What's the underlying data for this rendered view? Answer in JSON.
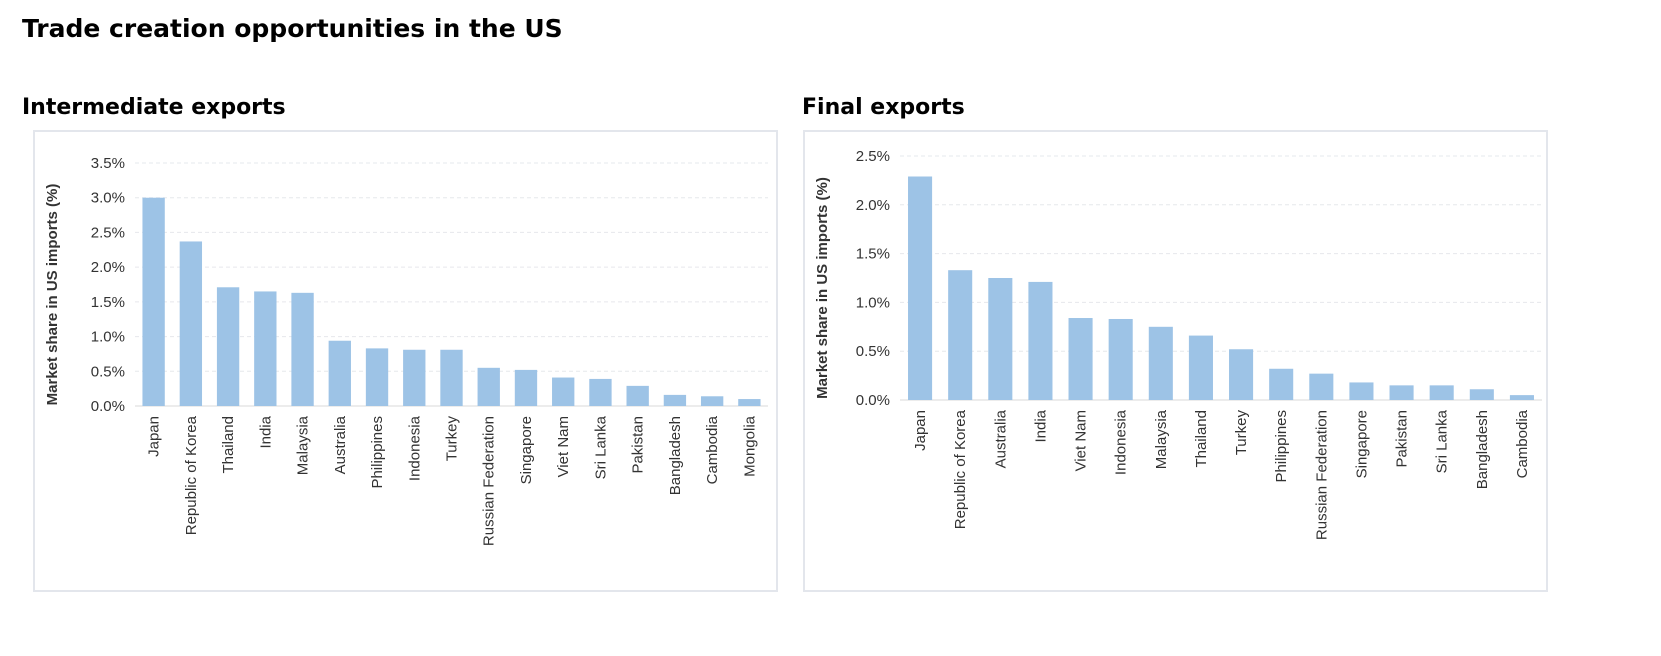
{
  "title": "Trade creation opportunities in the US",
  "chart_data": [
    {
      "type": "bar",
      "title": "Intermediate exports",
      "ylabel": "Market share in US imports (%)",
      "xlabel": "",
      "ylim": [
        0,
        3.5
      ],
      "yticks": [
        "0.0%",
        "0.5%",
        "1.0%",
        "1.5%",
        "2.0%",
        "2.5%",
        "3.0%",
        "3.5%"
      ],
      "grid": true,
      "bar_color": "#9dc3e6",
      "categories": [
        "Japan",
        "Republic of Korea",
        "Thailand",
        "India",
        "Malaysia",
        "Australia",
        "Philippines",
        "Indonesia",
        "Turkey",
        "Russian Federation",
        "Singapore",
        "Viet Nam",
        "Sri Lanka",
        "Pakistan",
        "Bangladesh",
        "Cambodia",
        "Mongolia"
      ],
      "values": [
        3.0,
        2.37,
        1.71,
        1.65,
        1.63,
        0.94,
        0.83,
        0.81,
        0.81,
        0.55,
        0.52,
        0.41,
        0.39,
        0.29,
        0.16,
        0.14,
        0.1
      ]
    },
    {
      "type": "bar",
      "title": "Final exports",
      "ylabel": "Market share in US imports (%)",
      "xlabel": "",
      "ylim": [
        0,
        2.5
      ],
      "yticks": [
        "0.0%",
        "0.5%",
        "1.0%",
        "1.5%",
        "2.0%",
        "2.5%"
      ],
      "grid": true,
      "bar_color": "#9dc3e6",
      "categories": [
        "Japan",
        "Republic of Korea",
        "Australia",
        "India",
        "Viet Nam",
        "Indonesia",
        "Malaysia",
        "Thailand",
        "Turkey",
        "Philippines",
        "Russian Federation",
        "Singapore",
        "Pakistan",
        "Sri Lanka",
        "Bangladesh",
        "Cambodia"
      ],
      "values": [
        2.29,
        1.33,
        1.25,
        1.21,
        0.84,
        0.83,
        0.75,
        0.66,
        0.52,
        0.32,
        0.27,
        0.18,
        0.15,
        0.15,
        0.11,
        0.05
      ]
    }
  ]
}
